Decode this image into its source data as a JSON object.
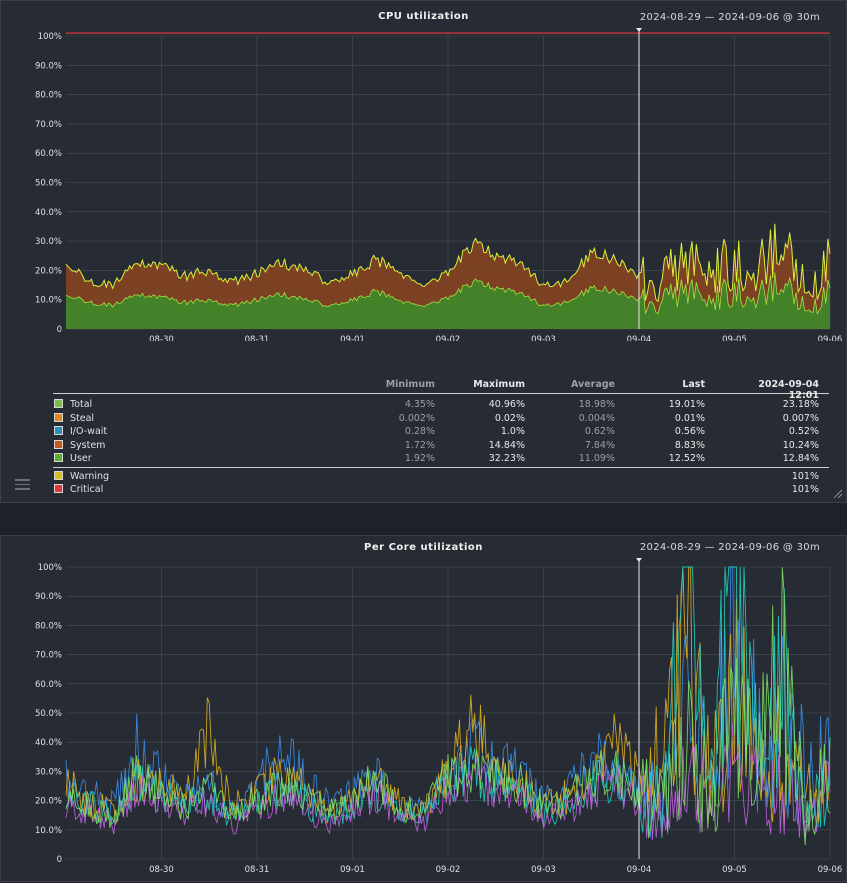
{
  "date_range": "2024-08-29 — 2024-09-06 @ 30m",
  "colors": {
    "grid": "#4a505a",
    "axis_text": "#e0e0e0",
    "total": "#d9ef3a",
    "system": "#8b4520",
    "user": "#3d8a2a",
    "critical": "#e83a3a",
    "cursor": "#e8e8e8"
  },
  "chart_data": [
    {
      "type": "area",
      "title": "CPU utilization",
      "xlabel": "",
      "ylabel": "",
      "x_ticks": [
        "08-30",
        "08-31",
        "09-01",
        "09-02",
        "09-03",
        "09-04",
        "09-05",
        "09-06"
      ],
      "y_ticks": [
        "0",
        "10.0%",
        "20.0%",
        "30.0%",
        "40.0%",
        "50.0%",
        "60.0%",
        "70.0%",
        "80.0%",
        "90.0%",
        "100%"
      ],
      "ylim": [
        0,
        100
      ],
      "x": [
        "2024-08-29 12:00",
        "2024-08-29 18:00",
        "2024-08-30 00:00",
        "2024-08-30 06:00",
        "2024-08-30 12:00",
        "2024-08-30 18:00",
        "2024-08-31 00:00",
        "2024-08-31 06:00",
        "2024-08-31 12:00",
        "2024-08-31 18:00",
        "2024-09-01 00:00",
        "2024-09-01 06:00",
        "2024-09-01 12:00",
        "2024-09-01 18:00",
        "2024-09-02 00:00",
        "2024-09-02 06:00",
        "2024-09-02 12:00",
        "2024-09-02 18:00",
        "2024-09-03 00:00",
        "2024-09-03 06:00",
        "2024-09-03 12:00",
        "2024-09-03 18:00",
        "2024-09-04 00:00",
        "2024-09-04 06:00",
        "2024-09-04 12:00",
        "2024-09-04 18:00",
        "2024-09-05 00:00",
        "2024-09-05 06:00",
        "2024-09-05 12:00",
        "2024-09-05 18:00",
        "2024-09-06 00:00",
        "2024-09-06 06:00",
        "2024-09-06 12:00"
      ],
      "series": [
        {
          "name": "Total",
          "values": [
            23,
            16,
            15,
            23,
            22,
            18,
            20,
            16,
            19,
            23,
            20,
            16,
            19,
            24,
            18,
            15,
            20,
            29,
            25,
            22,
            15,
            16,
            26,
            24,
            18,
            16,
            26,
            18,
            24,
            22,
            28,
            14,
            22
          ]
        },
        {
          "name": "User",
          "values": [
            12,
            9,
            8,
            12,
            11,
            9,
            10,
            8,
            10,
            12,
            10,
            8,
            10,
            13,
            9,
            8,
            11,
            16,
            14,
            12,
            8,
            9,
            14,
            13,
            10,
            9,
            15,
            9,
            14,
            12,
            15,
            7,
            12
          ]
        }
      ],
      "critical_line": 101,
      "cursor_x": "2024-09-04 12:00",
      "legend": {
        "headers": {
          "min": "Minimum",
          "max": "Maximum",
          "avg": "Average",
          "last": "Last",
          "ts": "2024-09-04 12:01"
        },
        "rows": [
          {
            "name": "Total",
            "color": "#7ac142",
            "min": "4.35%",
            "max": "40.96%",
            "avg": "18.98%",
            "last": "19.01%",
            "ts": "23.18%"
          },
          {
            "name": "Steal",
            "color": "#e08a1e",
            "min": "0.002%",
            "max": "0.02%",
            "avg": "0.004%",
            "last": "0.01%",
            "ts": "0.007%"
          },
          {
            "name": "I/O-wait",
            "color": "#2b8fbf",
            "min": "0.28%",
            "max": "1.0%",
            "avg": "0.62%",
            "last": "0.56%",
            "ts": "0.52%"
          },
          {
            "name": "System",
            "color": "#c45a1c",
            "min": "1.72%",
            "max": "14.84%",
            "avg": "7.84%",
            "last": "8.83%",
            "ts": "10.24%"
          },
          {
            "name": "User",
            "color": "#5ab030",
            "min": "1.92%",
            "max": "32.23%",
            "avg": "11.09%",
            "last": "12.52%",
            "ts": "12.84%"
          }
        ],
        "thresholds": [
          {
            "name": "Warning",
            "color": "#d8c020",
            "ts": "101%"
          },
          {
            "name": "Critical",
            "color": "#e03a3a",
            "ts": "101%"
          }
        ]
      }
    },
    {
      "type": "line",
      "title": "Per Core utilization",
      "xlabel": "",
      "ylabel": "",
      "x_ticks": [
        "08-30",
        "08-31",
        "09-01",
        "09-02",
        "09-03",
        "09-04",
        "09-05",
        "09-06"
      ],
      "y_ticks": [
        "0",
        "10.0%",
        "20.0%",
        "30.0%",
        "40.0%",
        "50.0%",
        "60.0%",
        "70.0%",
        "80.0%",
        "90.0%",
        "100%"
      ],
      "ylim": [
        0,
        100
      ],
      "x": [
        "2024-08-29 12:00",
        "2024-08-29 18:00",
        "2024-08-30 00:00",
        "2024-08-30 06:00",
        "2024-08-30 12:00",
        "2024-08-30 18:00",
        "2024-08-31 00:00",
        "2024-08-31 06:00",
        "2024-08-31 12:00",
        "2024-08-31 18:00",
        "2024-09-01 00:00",
        "2024-09-01 06:00",
        "2024-09-01 12:00",
        "2024-09-01 18:00",
        "2024-09-02 00:00",
        "2024-09-02 06:00",
        "2024-09-02 12:00",
        "2024-09-02 18:00",
        "2024-09-03 00:00",
        "2024-09-03 06:00",
        "2024-09-03 12:00",
        "2024-09-03 18:00",
        "2024-09-04 00:00",
        "2024-09-04 06:00",
        "2024-09-04 12:00",
        "2024-09-04 18:00",
        "2024-09-05 00:00",
        "2024-09-05 06:00",
        "2024-09-05 12:00",
        "2024-09-05 18:00",
        "2024-09-06 00:00",
        "2024-09-06 06:00",
        "2024-09-06 12:00"
      ],
      "series": [
        {
          "color": "#3a8ee8",
          "values": [
            30,
            22,
            18,
            40,
            28,
            20,
            25,
            15,
            24,
            38,
            26,
            18,
            22,
            30,
            18,
            16,
            28,
            38,
            32,
            30,
            20,
            24,
            35,
            30,
            24,
            20,
            50,
            30,
            80,
            40,
            45,
            30,
            35
          ]
        },
        {
          "color": "#e0b020",
          "values": [
            25,
            20,
            15,
            28,
            26,
            22,
            45,
            18,
            22,
            30,
            24,
            16,
            20,
            26,
            20,
            18,
            32,
            50,
            28,
            26,
            18,
            22,
            30,
            40,
            28,
            35,
            85,
            25,
            60,
            30,
            35,
            20,
            30
          ]
        },
        {
          "color": "#20d0c0",
          "values": [
            22,
            18,
            14,
            26,
            22,
            18,
            22,
            14,
            18,
            24,
            20,
            14,
            18,
            24,
            16,
            14,
            26,
            30,
            26,
            24,
            16,
            18,
            26,
            28,
            22,
            18,
            100,
            20,
            100,
            28,
            60,
            15,
            28
          ]
        },
        {
          "color": "#c060e0",
          "values": [
            20,
            16,
            12,
            24,
            20,
            16,
            20,
            12,
            16,
            22,
            18,
            12,
            16,
            22,
            14,
            12,
            24,
            28,
            24,
            22,
            14,
            16,
            24,
            26,
            20,
            16,
            30,
            18,
            30,
            24,
            28,
            10,
            25
          ]
        },
        {
          "color": "#80e060",
          "values": [
            24,
            18,
            14,
            30,
            24,
            18,
            24,
            16,
            20,
            26,
            22,
            16,
            20,
            28,
            18,
            16,
            28,
            32,
            28,
            26,
            18,
            20,
            28,
            30,
            22,
            18,
            40,
            22,
            50,
            30,
            70,
            12,
            30
          ]
        }
      ],
      "cursor_x": "2024-09-04 12:00"
    }
  ]
}
